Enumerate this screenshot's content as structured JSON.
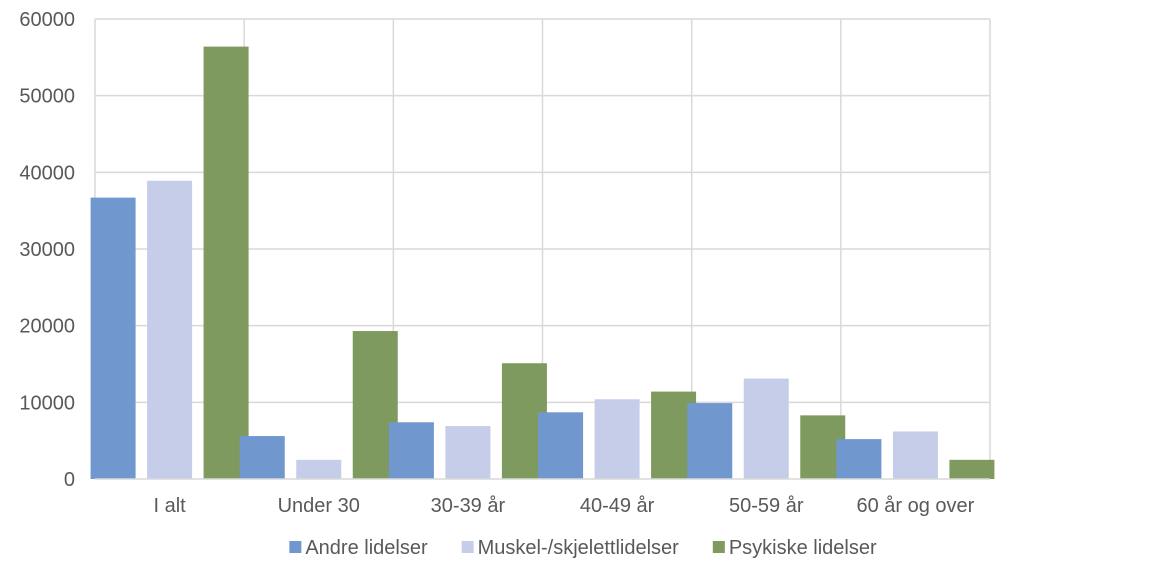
{
  "chart_data": {
    "type": "bar",
    "title": "",
    "xlabel": "",
    "ylabel": "",
    "ylim": [
      0,
      60000
    ],
    "yticks": [
      0,
      10000,
      20000,
      30000,
      40000,
      50000,
      60000
    ],
    "grid": true,
    "legend_position": "bottom",
    "categories": [
      "I alt",
      "Under 30",
      "30-39 år",
      "40-49 år",
      "50-59 år",
      "60 år og over"
    ],
    "series": [
      {
        "name": "Andre lidelser",
        "color": "#7097CE",
        "values": [
          36700,
          5600,
          7400,
          8700,
          9900,
          5200
        ]
      },
      {
        "name": "Muskel-/skjelettlidelser",
        "color": "#C5CDE9",
        "values": [
          38900,
          2500,
          6900,
          10400,
          13100,
          6200
        ]
      },
      {
        "name": "Psykiske lidelser",
        "color": "#7E9A5E",
        "values": [
          56400,
          19300,
          15100,
          11400,
          8300,
          2500
        ]
      }
    ]
  }
}
